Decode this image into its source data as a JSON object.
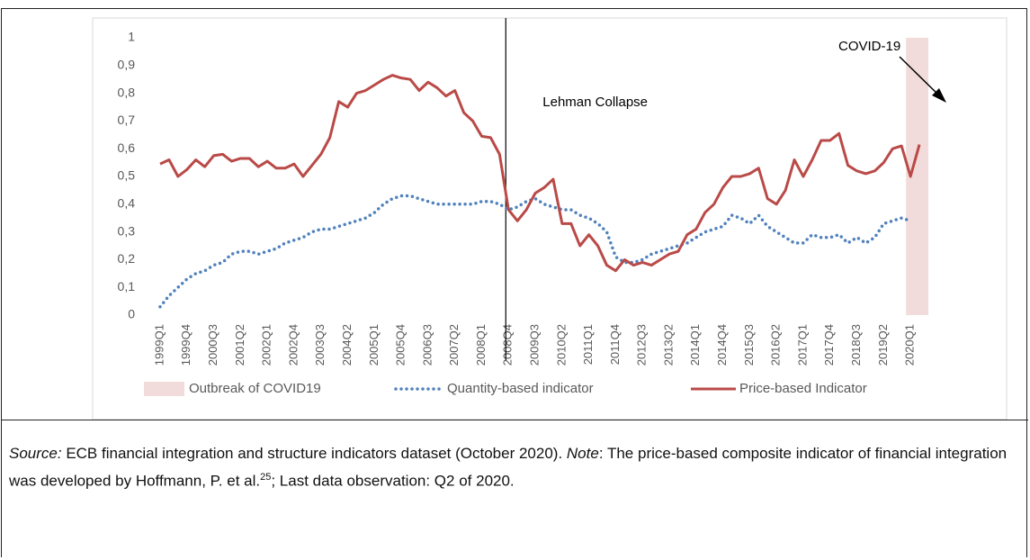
{
  "chart_data": {
    "type": "line",
    "categories": [
      "1999Q1",
      null,
      null,
      "1999Q4",
      null,
      null,
      "2000Q3",
      null,
      null,
      "2001Q2",
      null,
      null,
      "2002Q1",
      null,
      null,
      "2002Q4",
      null,
      null,
      "2003Q3",
      null,
      null,
      "2004Q2",
      null,
      null,
      "2005Q1",
      null,
      null,
      "2005Q4",
      null,
      null,
      "2006Q3",
      null,
      null,
      "2007Q2",
      null,
      null,
      "2008Q1",
      null,
      null,
      "2008Q4",
      null,
      null,
      "2009Q3",
      null,
      null,
      "2010Q2",
      null,
      null,
      "2011Q1",
      null,
      null,
      "2011Q4",
      null,
      null,
      "2012Q3",
      null,
      null,
      "2013Q2",
      null,
      null,
      "2014Q1",
      null,
      null,
      "2014Q4",
      null,
      null,
      "2015Q3",
      null,
      null,
      "2016Q2",
      null,
      null,
      "2017Q1",
      null,
      null,
      "2017Q4",
      null,
      null,
      "2018Q3",
      null,
      null,
      "2019Q2",
      null,
      null,
      "2020Q1",
      null
    ],
    "series": [
      {
        "name": "Quantity-based indicator",
        "color": "#4f81bd",
        "style": "dotted",
        "values": [
          0.03,
          0.07,
          0.1,
          0.13,
          0.15,
          0.16,
          0.18,
          0.19,
          0.22,
          0.23,
          0.23,
          0.22,
          0.23,
          0.24,
          0.26,
          0.27,
          0.28,
          0.3,
          0.31,
          0.31,
          0.32,
          0.33,
          0.34,
          0.35,
          0.37,
          0.4,
          0.42,
          0.43,
          0.43,
          0.42,
          0.41,
          0.4,
          0.4,
          0.4,
          0.4,
          0.4,
          0.41,
          0.41,
          0.4,
          0.38,
          0.39,
          0.41,
          0.42,
          0.4,
          0.39,
          0.38,
          0.38,
          0.36,
          0.35,
          0.33,
          0.3,
          0.21,
          0.19,
          0.19,
          0.2,
          0.22,
          0.23,
          0.24,
          0.25,
          0.26,
          0.28,
          0.3,
          0.31,
          0.32,
          0.36,
          0.35,
          0.33,
          0.36,
          0.32,
          0.3,
          0.28,
          0.26,
          0.26,
          0.29,
          0.28,
          0.28,
          0.29,
          0.26,
          0.28,
          0.26,
          0.28,
          0.33,
          0.34,
          0.35,
          0.34,
          null
        ]
      },
      {
        "name": "Price-based Indicator",
        "color": "#b94a47",
        "style": "solid",
        "values": [
          0.545,
          0.56,
          0.5,
          0.525,
          0.56,
          0.535,
          0.575,
          0.58,
          0.555,
          0.565,
          0.565,
          0.535,
          0.555,
          0.53,
          0.53,
          0.545,
          0.5,
          0.54,
          0.58,
          0.64,
          0.77,
          0.75,
          0.8,
          0.81,
          0.83,
          0.85,
          0.865,
          0.855,
          0.85,
          0.81,
          0.84,
          0.82,
          0.79,
          0.81,
          0.73,
          0.7,
          0.645,
          0.64,
          0.58,
          0.38,
          0.34,
          0.38,
          0.44,
          0.46,
          0.49,
          0.33,
          0.33,
          0.25,
          0.29,
          0.25,
          0.18,
          0.16,
          0.2,
          0.18,
          0.19,
          0.18,
          0.2,
          0.22,
          0.23,
          0.29,
          0.31,
          0.37,
          0.4,
          0.46,
          0.5,
          0.5,
          0.51,
          0.53,
          0.42,
          0.4,
          0.45,
          0.56,
          0.5,
          0.56,
          0.63,
          0.63,
          0.655,
          0.54,
          0.52,
          0.51,
          0.52,
          0.55,
          0.6,
          0.61,
          0.5,
          0.615
        ]
      }
    ],
    "shade": {
      "name": "Outbreak of COVID19",
      "color": "#f2dcdb",
      "from": "2020Q1"
    },
    "annotations": [
      {
        "text": "Lehman Collapse",
        "x": "2008Q4"
      },
      {
        "text": "COVID-19",
        "x": "2020Q1"
      }
    ],
    "ylim": [
      0,
      1
    ],
    "yticks": [
      0,
      {
        "value": 0.1,
        "label": "0,1"
      },
      {
        "value": 0.2,
        "label": "0,2"
      },
      {
        "value": 0.3,
        "label": "0,3"
      },
      {
        "value": 0.4,
        "label": "0,4"
      },
      {
        "value": 0.5,
        "label": "0,5"
      },
      {
        "value": 0.6,
        "label": "0,6"
      },
      {
        "value": 0.7,
        "label": "0,7"
      },
      {
        "value": 0.8,
        "label": "0,8"
      },
      {
        "value": 0.9,
        "label": "0,9"
      },
      1
    ],
    "grid": false,
    "legend": "bottom"
  },
  "caption": {
    "source_label": "Source:",
    "source_text": " ECB financial integration and structure indicators dataset (October 2020). ",
    "note_label": "Note",
    "note_text": ": The price-based composite indicator of financial integration was developed by Hoffmann, P. et al.",
    "footnote": "25",
    "tail": "; Last data observation: Q2 of 2020."
  }
}
